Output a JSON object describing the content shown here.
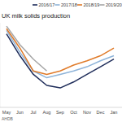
{
  "chart_data": {
    "type": "line",
    "title": "UK milk solids production",
    "source": "AHDB",
    "categories": [
      "May",
      "Jun",
      "Jul",
      "Aug",
      "Sep",
      "Oct",
      "Nov",
      "Dec",
      "Jan"
    ],
    "series": [
      {
        "name": "2016/17",
        "color": "#1f2d5a",
        "values": [
          87,
          61,
          39,
          26,
          23,
          30,
          39,
          48,
          57
        ]
      },
      {
        "name": "2017/18",
        "color": "#8fb4d9",
        "values": [
          91,
          65,
          43,
          35,
          39,
          43,
          48,
          55,
          61
        ]
      },
      {
        "name": "2018/19",
        "color": "#e07b2a",
        "values": [
          93,
          70,
          43,
          39,
          43,
          50,
          55,
          61,
          70
        ]
      },
      {
        "name": "2019/20",
        "color": "#a6a6a6",
        "values": [
          96,
          74,
          57,
          43,
          null,
          null,
          null,
          null,
          null
        ]
      }
    ],
    "ylim": [
      0,
      100
    ],
    "yticks": [],
    "grid": false,
    "legend": "top",
    "tick_labels": "x"
  }
}
